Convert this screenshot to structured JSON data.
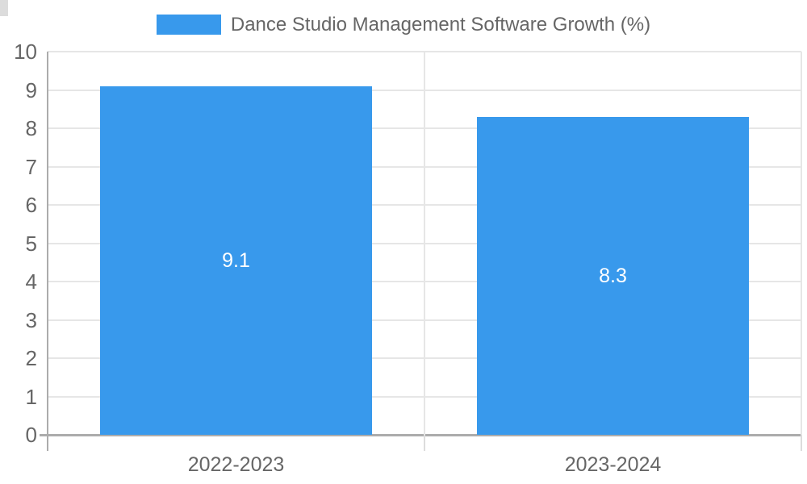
{
  "legend": {
    "label": "Dance Studio Management Software Growth (%)"
  },
  "chart_data": {
    "type": "bar",
    "title": "Dance Studio Management Software Growth (%)",
    "categories": [
      "2022-2023",
      "2023-2024"
    ],
    "values": [
      9.1,
      8.3
    ],
    "value_labels": [
      "9.1",
      "8.3"
    ],
    "xlabel": "",
    "ylabel": "",
    "ylim": [
      0,
      10
    ],
    "ytick_step": 1,
    "yticks": [
      "0",
      "1",
      "2",
      "3",
      "4",
      "5",
      "6",
      "7",
      "8",
      "9",
      "10"
    ],
    "grid": true,
    "legend_position": "top",
    "colors": {
      "bar": "#3899EC",
      "data_label": "#FFFFFF",
      "axis_text": "#666666",
      "gridline": "#E6E6E6",
      "axis_line": "#ACACAC",
      "tick_stub": "#DCDCDC"
    }
  }
}
